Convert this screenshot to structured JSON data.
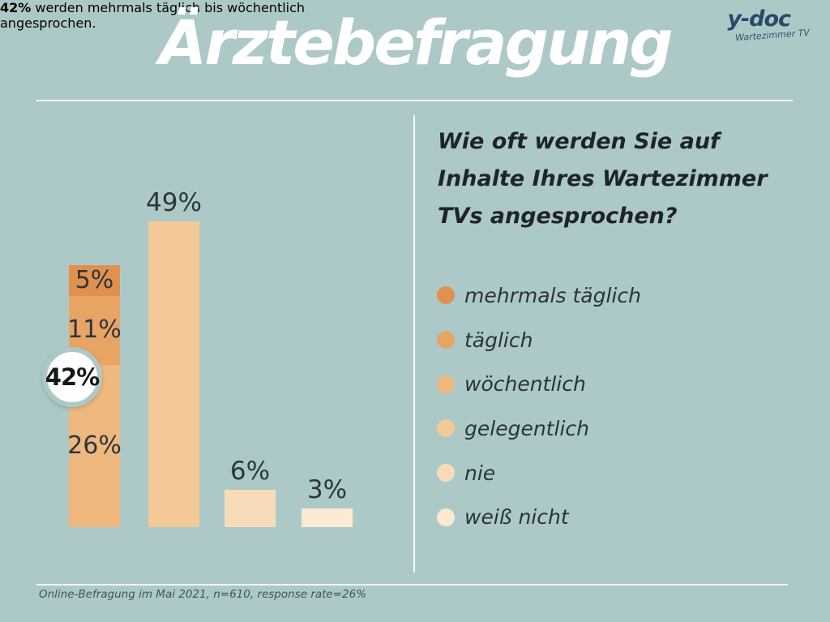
{
  "page": {
    "title": "Ärztebefragung",
    "background_color": "#adc9c7",
    "footnote": "Online-Befragung im Mai 2021, n=610, response rate=26%"
  },
  "logo": {
    "name": "y-doc",
    "tagline": "Wartezimmer TV",
    "color": "#2a4a6b"
  },
  "highlight_note": {
    "value": "42%",
    "line1": "werden mehrmals täglich bis wöchentlich",
    "line2": "angesprochen."
  },
  "question": {
    "text": "Wie oft werden Sie auf Inhalte Ihres Wartezimmer TVs angesprochen?",
    "lines": [
      "Wie oft werden Sie auf",
      "Inhalte Ihres Wartezimmer",
      "TVs angesprochen?"
    ]
  },
  "chart_data": {
    "type": "bar",
    "title": "Ärztebefragung",
    "unit": "%",
    "ylim": [
      0,
      50
    ],
    "grid": false,
    "legend_position": "right",
    "callout": {
      "label": "42%",
      "description": "mehrmals täglich bis wöchentlich"
    },
    "bars": [
      {
        "kind": "stacked",
        "total": 42,
        "segments": [
          {
            "label": "5%",
            "value": 5,
            "category": "mehrmals täglich",
            "color": "#e0914f"
          },
          {
            "label": "11%",
            "value": 11,
            "category": "täglich",
            "color": "#e7a465"
          },
          {
            "label": "26%",
            "value": 26,
            "category": "wöchentlich",
            "color": "#eeb87e"
          }
        ]
      },
      {
        "kind": "simple",
        "label": "49%",
        "value": 49,
        "category": "gelegentlich",
        "color": "#f3c997"
      },
      {
        "kind": "simple",
        "label": "6%",
        "value": 6,
        "category": "nie",
        "color": "#f8dcba"
      },
      {
        "kind": "simple",
        "label": "3%",
        "value": 3,
        "category": "weiß nicht",
        "color": "#faead4"
      }
    ],
    "legend": [
      {
        "label": "mehrmals täglich",
        "color": "#e0914f"
      },
      {
        "label": "täglich",
        "color": "#e7a465"
      },
      {
        "label": "wöchentlich",
        "color": "#eeb87e"
      },
      {
        "label": "gelegentlich",
        "color": "#f3c997"
      },
      {
        "label": "nie",
        "color": "#f8dcba"
      },
      {
        "label": "weiß nicht",
        "color": "#faead4"
      }
    ]
  }
}
